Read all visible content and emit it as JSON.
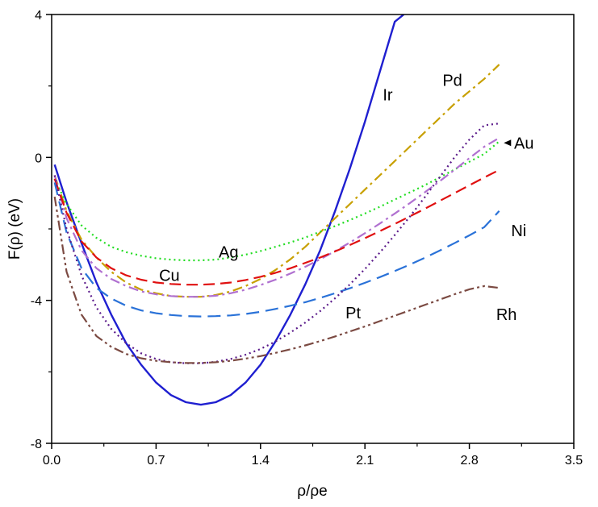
{
  "chart_data": {
    "type": "line",
    "title": "",
    "xlabel": "ρ/ρe",
    "ylabel": "F(ρ) (eV)",
    "xlim": [
      0.0,
      3.5
    ],
    "ylim": [
      -8,
      4
    ],
    "x_ticks": [
      "0.0",
      "0.7",
      "1.4",
      "2.1",
      "2.8",
      "3.5"
    ],
    "y_ticks": [
      "4",
      "0",
      "-4",
      "-8"
    ],
    "grid": false,
    "legend": "none",
    "series": [
      {
        "name": "Ir",
        "color": "#1f1fd0",
        "dash": "solid",
        "x": [
          0.02,
          0.1,
          0.2,
          0.3,
          0.4,
          0.5,
          0.6,
          0.7,
          0.8,
          0.9,
          1.0,
          1.1,
          1.2,
          1.3,
          1.4,
          1.5,
          1.6,
          1.7,
          1.8,
          1.9,
          2.0,
          2.1,
          2.2,
          2.3,
          2.36
        ],
        "y": [
          -0.2,
          -1.25,
          -2.4,
          -3.5,
          -4.4,
          -5.2,
          -5.8,
          -6.3,
          -6.65,
          -6.85,
          -6.92,
          -6.85,
          -6.65,
          -6.3,
          -5.8,
          -5.15,
          -4.4,
          -3.55,
          -2.6,
          -1.5,
          -0.3,
          1.0,
          2.4,
          3.8,
          4.0
        ]
      },
      {
        "name": "Pd",
        "color": "#c8a000",
        "dash": "dashdot",
        "x": [
          0.02,
          0.1,
          0.2,
          0.3,
          0.4,
          0.5,
          0.6,
          0.7,
          0.8,
          0.9,
          1.0,
          1.1,
          1.2,
          1.3,
          1.4,
          1.5,
          1.6,
          1.7,
          1.8,
          1.9,
          2.0,
          2.1,
          2.2,
          2.3,
          2.4,
          2.5,
          2.6,
          2.7,
          2.8,
          2.9,
          3.0
        ],
        "y": [
          -0.5,
          -1.5,
          -2.3,
          -2.8,
          -3.2,
          -3.5,
          -3.7,
          -3.8,
          -3.88,
          -3.9,
          -3.9,
          -3.85,
          -3.75,
          -3.6,
          -3.4,
          -3.15,
          -2.85,
          -2.5,
          -2.1,
          -1.7,
          -1.3,
          -0.9,
          -0.5,
          -0.1,
          0.3,
          0.7,
          1.1,
          1.5,
          1.85,
          2.2,
          2.6
        ]
      },
      {
        "name": "Ag",
        "color": "#22dd22",
        "dash": "dot",
        "x": [
          0.02,
          0.1,
          0.2,
          0.3,
          0.4,
          0.5,
          0.6,
          0.7,
          0.8,
          0.9,
          1.0,
          1.1,
          1.2,
          1.3,
          1.4,
          1.5,
          1.6,
          1.7,
          1.8,
          1.9,
          2.0,
          2.1,
          2.2,
          2.3,
          2.4,
          2.5,
          2.6,
          2.7,
          2.8,
          2.9,
          3.0
        ],
        "y": [
          -0.6,
          -1.3,
          -1.9,
          -2.25,
          -2.5,
          -2.65,
          -2.75,
          -2.82,
          -2.86,
          -2.88,
          -2.88,
          -2.86,
          -2.8,
          -2.72,
          -2.62,
          -2.5,
          -2.38,
          -2.24,
          -2.08,
          -1.92,
          -1.75,
          -1.57,
          -1.38,
          -1.18,
          -0.98,
          -0.78,
          -0.56,
          -0.34,
          -0.12,
          0.1,
          0.45
        ]
      },
      {
        "name": "Au",
        "color": "#b070d0",
        "dash": "dashdot",
        "x": [
          0.02,
          0.1,
          0.2,
          0.3,
          0.4,
          0.5,
          0.6,
          0.7,
          0.8,
          0.9,
          1.0,
          1.1,
          1.2,
          1.3,
          1.4,
          1.5,
          1.6,
          1.7,
          1.8,
          1.9,
          2.0,
          2.1,
          2.2,
          2.3,
          2.4,
          2.5,
          2.6,
          2.7,
          2.8,
          2.9,
          3.0
        ],
        "y": [
          -0.5,
          -1.7,
          -2.6,
          -3.1,
          -3.4,
          -3.6,
          -3.75,
          -3.83,
          -3.88,
          -3.9,
          -3.9,
          -3.87,
          -3.8,
          -3.7,
          -3.57,
          -3.42,
          -3.25,
          -3.06,
          -2.85,
          -2.62,
          -2.38,
          -2.12,
          -1.85,
          -1.57,
          -1.28,
          -0.98,
          -0.67,
          -0.35,
          -0.02,
          0.3,
          0.55
        ]
      },
      {
        "name": "Cu",
        "color": "#e01010",
        "dash": "dash",
        "x": [
          0.02,
          0.1,
          0.2,
          0.3,
          0.4,
          0.5,
          0.6,
          0.7,
          0.8,
          0.9,
          1.0,
          1.1,
          1.2,
          1.3,
          1.4,
          1.5,
          1.6,
          1.7,
          1.8,
          1.9,
          2.0,
          2.1,
          2.2,
          2.3,
          2.4,
          2.5,
          2.6,
          2.7,
          2.8,
          2.9,
          3.0
        ],
        "y": [
          -0.6,
          -1.55,
          -2.35,
          -2.8,
          -3.1,
          -3.3,
          -3.42,
          -3.5,
          -3.54,
          -3.56,
          -3.56,
          -3.54,
          -3.5,
          -3.43,
          -3.34,
          -3.23,
          -3.1,
          -2.95,
          -2.8,
          -2.63,
          -2.45,
          -2.26,
          -2.06,
          -1.86,
          -1.65,
          -1.44,
          -1.22,
          -1.0,
          -0.78,
          -0.56,
          -0.35
        ]
      },
      {
        "name": "Ni",
        "color": "#2a72d8",
        "dash": "longdash",
        "x": [
          0.02,
          0.1,
          0.2,
          0.3,
          0.4,
          0.5,
          0.6,
          0.7,
          0.8,
          0.9,
          1.0,
          1.1,
          1.2,
          1.3,
          1.4,
          1.5,
          1.6,
          1.7,
          1.8,
          1.9,
          2.0,
          2.1,
          2.2,
          2.3,
          2.4,
          2.5,
          2.6,
          2.7,
          2.8,
          2.9,
          3.0
        ],
        "y": [
          -0.7,
          -2.1,
          -3.1,
          -3.65,
          -3.95,
          -4.15,
          -4.28,
          -4.36,
          -4.41,
          -4.44,
          -4.45,
          -4.44,
          -4.42,
          -4.38,
          -4.32,
          -4.24,
          -4.15,
          -4.05,
          -3.93,
          -3.8,
          -3.66,
          -3.51,
          -3.35,
          -3.18,
          -3.0,
          -2.81,
          -2.61,
          -2.4,
          -2.18,
          -1.95,
          -1.5
        ]
      },
      {
        "name": "Pt",
        "color": "#5a1a8a",
        "dash": "dot",
        "x": [
          0.02,
          0.1,
          0.2,
          0.3,
          0.4,
          0.5,
          0.6,
          0.7,
          0.8,
          0.9,
          1.0,
          1.1,
          1.2,
          1.3,
          1.4,
          1.5,
          1.6,
          1.7,
          1.8,
          1.9,
          2.0,
          2.1,
          2.2,
          2.3,
          2.4,
          2.5,
          2.6,
          2.7,
          2.8,
          2.9,
          3.0
        ],
        "y": [
          -0.5,
          -2.0,
          -3.3,
          -4.2,
          -4.8,
          -5.2,
          -5.48,
          -5.64,
          -5.73,
          -5.76,
          -5.76,
          -5.72,
          -5.64,
          -5.52,
          -5.36,
          -5.15,
          -4.9,
          -4.62,
          -4.3,
          -3.94,
          -3.55,
          -3.12,
          -2.66,
          -2.17,
          -1.66,
          -1.12,
          -0.56,
          0.0,
          0.5,
          0.9,
          0.95
        ]
      },
      {
        "name": "Rh",
        "color": "#7b4a42",
        "dash": "dashdotdot",
        "x": [
          0.02,
          0.1,
          0.2,
          0.3,
          0.4,
          0.5,
          0.6,
          0.7,
          0.8,
          0.9,
          1.0,
          1.1,
          1.2,
          1.3,
          1.4,
          1.5,
          1.6,
          1.7,
          1.8,
          1.9,
          2.0,
          2.1,
          2.2,
          2.3,
          2.4,
          2.5,
          2.6,
          2.7,
          2.8,
          2.9,
          3.0
        ],
        "y": [
          -1.1,
          -3.2,
          -4.4,
          -5.0,
          -5.3,
          -5.5,
          -5.62,
          -5.69,
          -5.73,
          -5.75,
          -5.75,
          -5.73,
          -5.69,
          -5.63,
          -5.56,
          -5.47,
          -5.37,
          -5.26,
          -5.14,
          -5.01,
          -4.87,
          -4.73,
          -4.58,
          -4.43,
          -4.28,
          -4.13,
          -3.98,
          -3.83,
          -3.69,
          -3.6,
          -3.65
        ]
      }
    ],
    "annotations": [
      {
        "text": "Ir",
        "x": 2.22,
        "y": 1.6
      },
      {
        "text": "Pd",
        "x": 2.62,
        "y": 2.0
      },
      {
        "text": "Au",
        "x": 3.1,
        "y": 0.25,
        "arrow_to": [
          3.02,
          0.25
        ]
      },
      {
        "text": "Ni",
        "x": 3.08,
        "y": -2.2
      },
      {
        "text": "Ag",
        "x": 1.12,
        "y": -2.8
      },
      {
        "text": "Cu",
        "x": 0.72,
        "y": -3.45
      },
      {
        "text": "Pt",
        "x": 1.97,
        "y": -4.5
      },
      {
        "text": "Rh",
        "x": 2.98,
        "y": -4.55
      }
    ]
  }
}
